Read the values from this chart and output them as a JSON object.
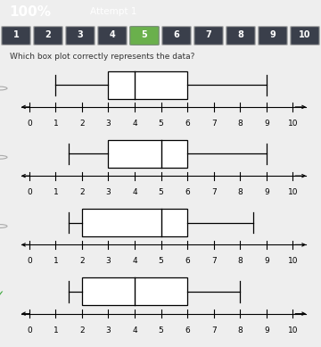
{
  "header_bg": "#4ab8d4",
  "nav_bg": "#3a3f4b",
  "body_bg": "#eeeeee",
  "button_active_bg": "#6ab04c",
  "button_inactive_bg": "#3a3f4b",
  "button_border": "#6a8a6a",
  "check_color": "#44aa44",
  "radio_color": "#aaaaaa",
  "nav_buttons": [
    "1",
    "2",
    "3",
    "4",
    "5",
    "6",
    "7",
    "8",
    "9",
    "10"
  ],
  "active_button": 4,
  "header_pct_text": "100%",
  "header_attempt_text": "Attempt 1",
  "question_text": "Which box plot correctly represents the data?",
  "box_plots": [
    {
      "min": 1.0,
      "q1": 3.0,
      "median": 4.0,
      "q3": 6.0,
      "max": 9.0,
      "correct": false
    },
    {
      "min": 1.5,
      "q1": 3.0,
      "median": 5.0,
      "q3": 6.0,
      "max": 9.0,
      "correct": false
    },
    {
      "min": 1.5,
      "q1": 2.0,
      "median": 5.0,
      "q3": 6.0,
      "max": 8.5,
      "correct": false
    },
    {
      "min": 1.5,
      "q1": 2.0,
      "median": 4.0,
      "q3": 6.0,
      "max": 8.0,
      "correct": true
    }
  ],
  "xticks": [
    0,
    1,
    2,
    3,
    4,
    5,
    6,
    7,
    8,
    9,
    10
  ],
  "xmin": -0.5,
  "xmax": 10.8
}
